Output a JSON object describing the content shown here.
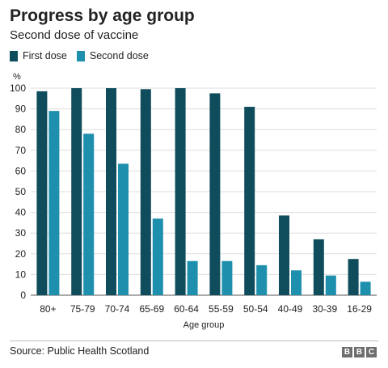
{
  "chart_data": {
    "type": "bar",
    "title": "Progress by age group",
    "subtitle": "Second dose of vaccine",
    "xlabel": "Age group",
    "ylabel": "%",
    "ylim": [
      0,
      100
    ],
    "yticks": [
      0,
      10,
      20,
      30,
      40,
      50,
      60,
      70,
      80,
      90,
      100
    ],
    "grid": true,
    "legend_position": "top-left",
    "categories": [
      "80+",
      "75-79",
      "70-74",
      "65-69",
      "60-64",
      "55-59",
      "50-54",
      "40-49",
      "30-39",
      "16-29"
    ],
    "series": [
      {
        "name": "First dose",
        "color": "#0f4c5c",
        "values": [
          98.5,
          100,
          100,
          99.5,
          100,
          97.5,
          91,
          38.5,
          27,
          17.5
        ]
      },
      {
        "name": "Second dose",
        "color": "#1f8fae",
        "values": [
          89,
          78,
          63.5,
          37,
          16.5,
          16.5,
          14.5,
          12,
          9.5,
          6.5
        ]
      }
    ],
    "source": "Source: Public Health Scotland"
  },
  "logo": {
    "letters": [
      "B",
      "B",
      "C"
    ]
  }
}
